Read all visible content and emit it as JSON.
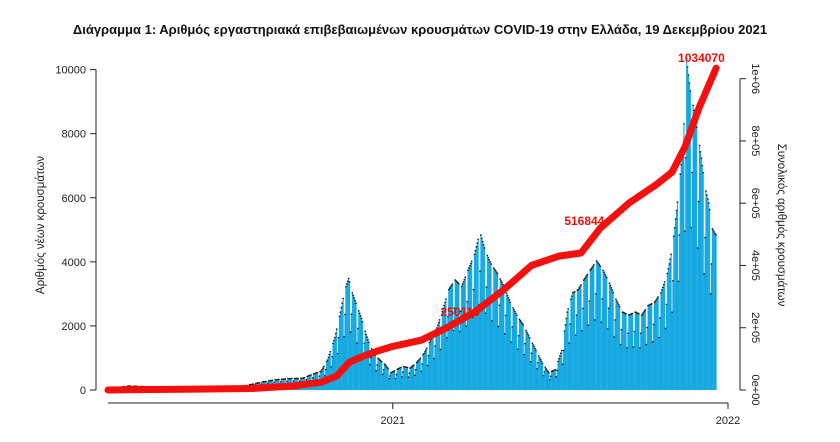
{
  "chart_data": {
    "type": "bar",
    "title": "Διάγραμμα 1: Αριθμός εργαστηριακά επιβεβαιωμένων κρουσμάτων COVID-19 στην Ελλάδα, 19 Δεκεμβρίου 2021",
    "ylabel": "Αριθμός νέων κρουσμάτων",
    "y2label": "Συνολικός αριθμός κρουσμάτων",
    "ylim": [
      0,
      10300
    ],
    "y2lim": [
      0,
      1060000
    ],
    "yticks": [
      0,
      2000,
      4000,
      6000,
      8000,
      10000
    ],
    "y2ticks": [
      "0e+00",
      "2e+05",
      "4e+05",
      "6e+05",
      "8e+05",
      "1e+06"
    ],
    "y2tick_values": [
      0,
      200000,
      400000,
      600000,
      800000,
      1000000
    ],
    "xticks": [
      "2021",
      "2022"
    ],
    "xtick_dates": [
      "2021-01-01",
      "2022-01-01"
    ],
    "x_range": [
      "2020-02-26",
      "2022-01-01"
    ],
    "colors": {
      "bars": "#14a8e0",
      "cumulative": "#f5100e",
      "points": "#222222"
    },
    "new_cases": [
      [
        "2020-02-26",
        1
      ],
      [
        "2020-03-20",
        90
      ],
      [
        "2020-04-15",
        60
      ],
      [
        "2020-05-15",
        15
      ],
      [
        "2020-06-15",
        20
      ],
      [
        "2020-07-15",
        40
      ],
      [
        "2020-08-10",
        200
      ],
      [
        "2020-08-25",
        280
      ],
      [
        "2020-09-10",
        320
      ],
      [
        "2020-09-25",
        330
      ],
      [
        "2020-10-05",
        450
      ],
      [
        "2020-10-15",
        550
      ],
      [
        "2020-10-22",
        900
      ],
      [
        "2020-10-30",
        1600
      ],
      [
        "2020-11-05",
        2400
      ],
      [
        "2020-11-10",
        3100
      ],
      [
        "2020-11-14",
        3450
      ],
      [
        "2020-11-18",
        3000
      ],
      [
        "2020-11-23",
        2600
      ],
      [
        "2020-11-28",
        2200
      ],
      [
        "2020-12-03",
        1700
      ],
      [
        "2020-12-08",
        1300
      ],
      [
        "2020-12-13",
        1050
      ],
      [
        "2020-12-18",
        900
      ],
      [
        "2020-12-24",
        750
      ],
      [
        "2020-12-30",
        500
      ],
      [
        "2021-01-05",
        600
      ],
      [
        "2021-01-12",
        700
      ],
      [
        "2021-01-20",
        650
      ],
      [
        "2021-01-28",
        850
      ],
      [
        "2021-02-04",
        1100
      ],
      [
        "2021-02-11",
        1500
      ],
      [
        "2021-02-18",
        1900
      ],
      [
        "2021-02-25",
        2500
      ],
      [
        "2021-03-03",
        3100
      ],
      [
        "2021-03-10",
        3400
      ],
      [
        "2021-03-17",
        3200
      ],
      [
        "2021-03-24",
        3700
      ],
      [
        "2021-03-31",
        4200
      ],
      [
        "2021-04-06",
        4900
      ],
      [
        "2021-04-12",
        4300
      ],
      [
        "2021-04-18",
        3900
      ],
      [
        "2021-04-25",
        3600
      ],
      [
        "2021-05-02",
        3200
      ],
      [
        "2021-05-09",
        2700
      ],
      [
        "2021-05-16",
        2300
      ],
      [
        "2021-05-23",
        2000
      ],
      [
        "2021-05-30",
        1600
      ],
      [
        "2021-06-06",
        1200
      ],
      [
        "2021-06-13",
        800
      ],
      [
        "2021-06-20",
        500
      ],
      [
        "2021-06-27",
        600
      ],
      [
        "2021-07-04",
        1200
      ],
      [
        "2021-07-10",
        2400
      ],
      [
        "2021-07-16",
        3000
      ],
      [
        "2021-07-22",
        3100
      ],
      [
        "2021-07-28",
        3400
      ],
      [
        "2021-08-04",
        3700
      ],
      [
        "2021-08-11",
        4000
      ],
      [
        "2021-08-18",
        3700
      ],
      [
        "2021-08-25",
        3300
      ],
      [
        "2021-09-01",
        2800
      ],
      [
        "2021-09-08",
        2400
      ],
      [
        "2021-09-15",
        2300
      ],
      [
        "2021-09-22",
        2400
      ],
      [
        "2021-09-29",
        2300
      ],
      [
        "2021-10-06",
        2600
      ],
      [
        "2021-10-13",
        2700
      ],
      [
        "2021-10-20",
        3000
      ],
      [
        "2021-10-27",
        3600
      ],
      [
        "2021-11-02",
        4500
      ],
      [
        "2021-11-08",
        6100
      ],
      [
        "2021-11-13",
        7600
      ],
      [
        "2021-11-17",
        10300
      ],
      [
        "2021-11-21",
        9300
      ],
      [
        "2021-11-25",
        8700
      ],
      [
        "2021-11-29",
        8000
      ],
      [
        "2021-12-03",
        7200
      ],
      [
        "2021-12-07",
        6300
      ],
      [
        "2021-12-11",
        5800
      ],
      [
        "2021-12-15",
        5000
      ],
      [
        "2021-12-19",
        4800
      ]
    ],
    "cumulative": [
      [
        "2020-02-26",
        0
      ],
      [
        "2020-06-01",
        3000
      ],
      [
        "2020-08-01",
        4700
      ],
      [
        "2020-09-15",
        13000
      ],
      [
        "2020-10-15",
        25000
      ],
      [
        "2020-11-01",
        45000
      ],
      [
        "2020-11-15",
        90000
      ],
      [
        "2020-12-01",
        110000
      ],
      [
        "2020-12-15",
        125000
      ],
      [
        "2021-01-01",
        140000
      ],
      [
        "2021-02-01",
        160000
      ],
      [
        "2021-03-01",
        200000
      ],
      [
        "2021-03-31",
        250000
      ],
      [
        "2021-05-01",
        320000
      ],
      [
        "2021-06-01",
        400000
      ],
      [
        "2021-07-01",
        430000
      ],
      [
        "2021-07-25",
        440000
      ],
      [
        "2021-08-15",
        520000
      ],
      [
        "2021-09-15",
        600000
      ],
      [
        "2021-10-15",
        660000
      ],
      [
        "2021-11-01",
        700000
      ],
      [
        "2021-11-15",
        780000
      ],
      [
        "2021-12-01",
        910000
      ],
      [
        "2021-12-19",
        1034070
      ]
    ],
    "annotations": [
      {
        "text": "1034070",
        "date": "2021-12-19",
        "value": 1034070
      },
      {
        "text": "516844",
        "date": "2021-08-15",
        "value": 516844
      },
      {
        "text": "250110",
        "date": "2021-03-31",
        "value": 250110
      }
    ]
  }
}
